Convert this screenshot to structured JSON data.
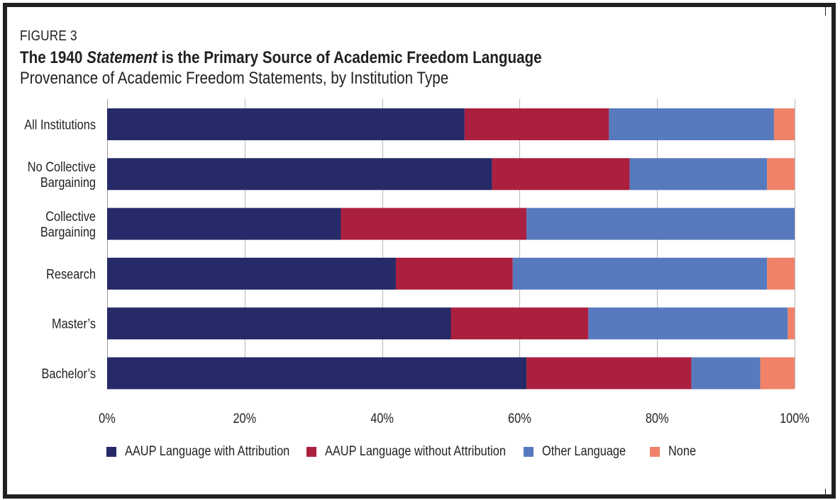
{
  "figure": {
    "label": "FIGURE 3",
    "title_prefix": "The 1940 ",
    "title_italic": "Statement",
    "title_suffix": " is the Primary Source of Academic Freedom Language",
    "subtitle": "Provenance of Academic Freedom Statements, by Institution Type"
  },
  "chart_data": {
    "type": "bar",
    "orientation": "horizontal",
    "stacked": true,
    "title": "The 1940 Statement is the Primary Source of Academic Freedom Language",
    "subtitle": "Provenance of Academic Freedom Statements, by Institution Type",
    "categories": [
      [
        "All Institutions"
      ],
      [
        "No Collective",
        "Bargaining"
      ],
      [
        "Collective",
        "Bargaining"
      ],
      [
        "Research"
      ],
      [
        "Master’s"
      ],
      [
        "Bachelor’s"
      ]
    ],
    "series": [
      {
        "name": "AAUP Language with Attribution",
        "color": "#262a68",
        "values": [
          52,
          56,
          34,
          42,
          50,
          61
        ]
      },
      {
        "name": "AAUP Language without Attribution",
        "color": "#ab1f3f",
        "values": [
          21,
          20,
          27,
          17,
          20,
          24
        ]
      },
      {
        "name": "Other Language",
        "color": "#5779be",
        "values": [
          24,
          20,
          39,
          37,
          29,
          10
        ]
      },
      {
        "name": "None",
        "color": "#ef8268",
        "values": [
          3,
          4,
          0,
          4,
          1,
          5
        ]
      }
    ],
    "x_ticks": [
      "0%",
      "20%",
      "40%",
      "60%",
      "80%",
      "100%"
    ],
    "xlim": [
      0,
      100
    ],
    "grid": true,
    "legend_position": "bottom"
  }
}
